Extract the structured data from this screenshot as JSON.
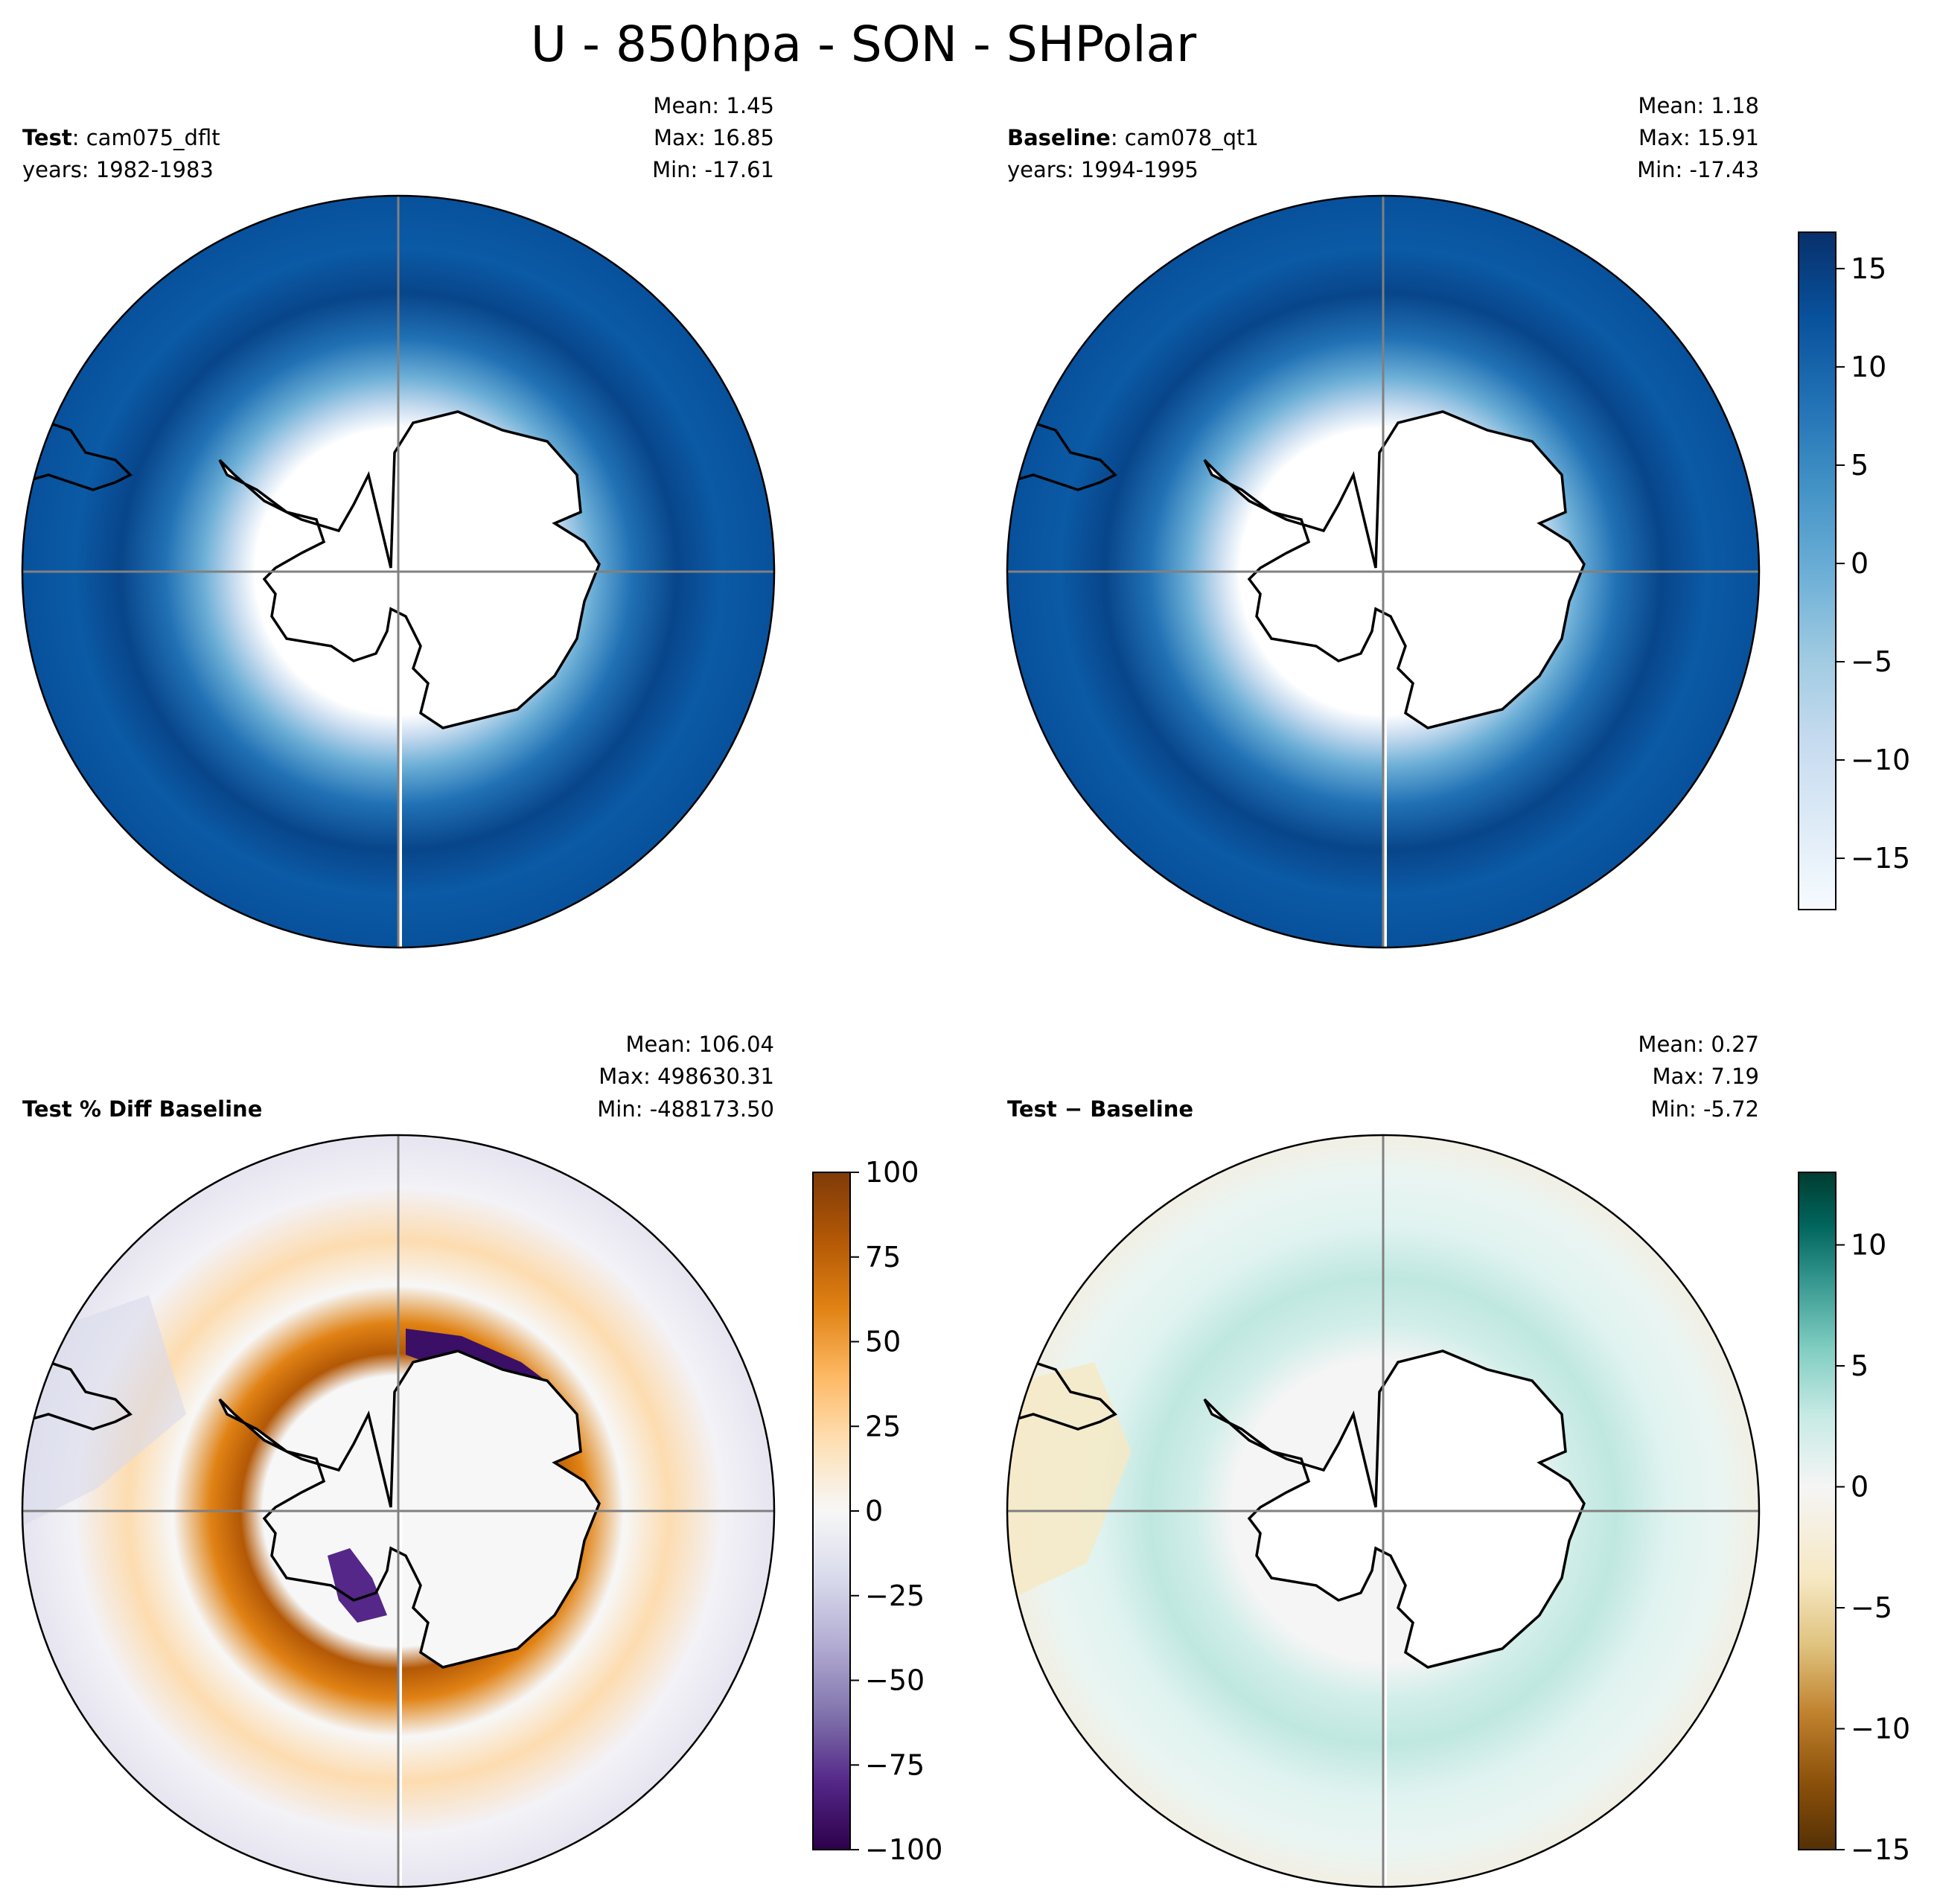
{
  "title": "U - 850hpa - SON - SHPolar",
  "panels": {
    "test": {
      "label_bold": "Test",
      "label_rest": ": cam075_dflt",
      "years": "years: 1982-1983",
      "mean": "Mean:  1.45",
      "max": "Max: 16.85",
      "min": "Min: -17.61"
    },
    "baseline": {
      "label_bold": "Baseline",
      "label_rest": ": cam078_qt1",
      "years": "years: 1994-1995",
      "mean": "Mean:  1.18",
      "max": "Max: 15.91",
      "min": "Min: -17.43"
    },
    "pctdiff": {
      "label_bold": "Test % Diff Baseline",
      "mean": "Mean: 106.04",
      "max": "Max: 498630.31",
      "min": "Min: -488173.50"
    },
    "diff": {
      "label_bold": "Test − Baseline",
      "mean": "Mean:  0.27",
      "max": "Max:  7.19",
      "min": "Min: -5.72"
    }
  },
  "colorbars": {
    "main": {
      "colormap": "Blues",
      "range": [
        -17.61,
        16.85
      ],
      "ticks": [
        "15",
        "10",
        "5",
        "0",
        "−5",
        "−10",
        "−15"
      ],
      "tick_values": [
        15,
        10,
        5,
        0,
        -5,
        -10,
        -15
      ]
    },
    "pct": {
      "colormap": "PuOr",
      "range": [
        -100,
        100
      ],
      "ticks": [
        "100",
        "75",
        "50",
        "25",
        "0",
        "−25",
        "−50",
        "−75",
        "−100"
      ],
      "tick_values": [
        100,
        75,
        50,
        25,
        0,
        -25,
        -50,
        -75,
        -100
      ]
    },
    "diff": {
      "colormap": "BrBG",
      "range": [
        -15,
        13
      ],
      "ticks": [
        "10",
        "5",
        "0",
        "−5",
        "−10",
        "−15"
      ],
      "tick_values": [
        10,
        5,
        0,
        -5,
        -10,
        -15
      ]
    }
  },
  "colors": {
    "blues": [
      "#f7fbff",
      "#deebf7",
      "#c6dbef",
      "#9ecae1",
      "#6baed6",
      "#4292c6",
      "#2171b5",
      "#08519c",
      "#08306b"
    ],
    "puor": [
      "#2d004b",
      "#542788",
      "#8073ac",
      "#b2abd2",
      "#d8daeb",
      "#f7f7f7",
      "#fee0b6",
      "#fdb863",
      "#e08214",
      "#b35806",
      "#7f3b08"
    ],
    "brbg": [
      "#543005",
      "#8c510a",
      "#bf812d",
      "#dfc27d",
      "#f6e8c3",
      "#f5f5f5",
      "#c7eae5",
      "#80cdc1",
      "#35978f",
      "#01665e",
      "#003c30"
    ],
    "grid": "#808080",
    "coast": "#000000"
  }
}
